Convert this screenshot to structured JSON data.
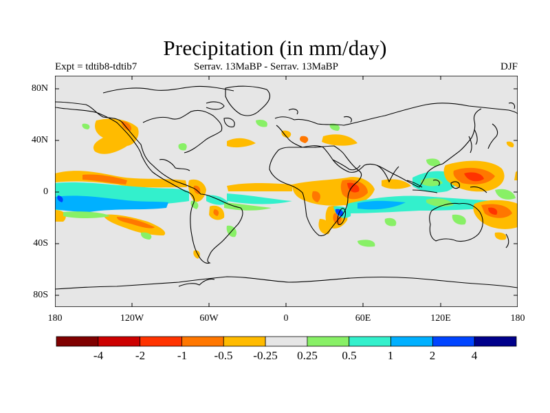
{
  "title": "Precipitation (in mm/day)",
  "subtitle_left": "Expt = tdtib8-tdtib7",
  "subtitle_center": "Serrav.   13MaBP - Serrav.   13MaBP",
  "subtitle_right": "DJF",
  "y_axis_labels": [
    "80N",
    "40N",
    "0",
    "40S",
    "80S"
  ],
  "x_axis_labels": [
    "180",
    "120W",
    "60W",
    "0",
    "60E",
    "120E",
    "180"
  ],
  "colorbar": {
    "colors": [
      "#7f0000",
      "#cc0000",
      "#ff3300",
      "#ff7700",
      "#ffbb00",
      "#e6e6e6",
      "#88f066",
      "#33f0cc",
      "#00b0ff",
      "#0044ff",
      "#00008b"
    ],
    "labels": [
      "-4",
      "-2",
      "-1",
      "-0.5",
      "-0.25",
      "0.25",
      "0.5",
      "1",
      "2",
      "4"
    ]
  },
  "colors": {
    "ocean_land_bg": "#e6e6e6",
    "coastline": "#000000"
  }
}
